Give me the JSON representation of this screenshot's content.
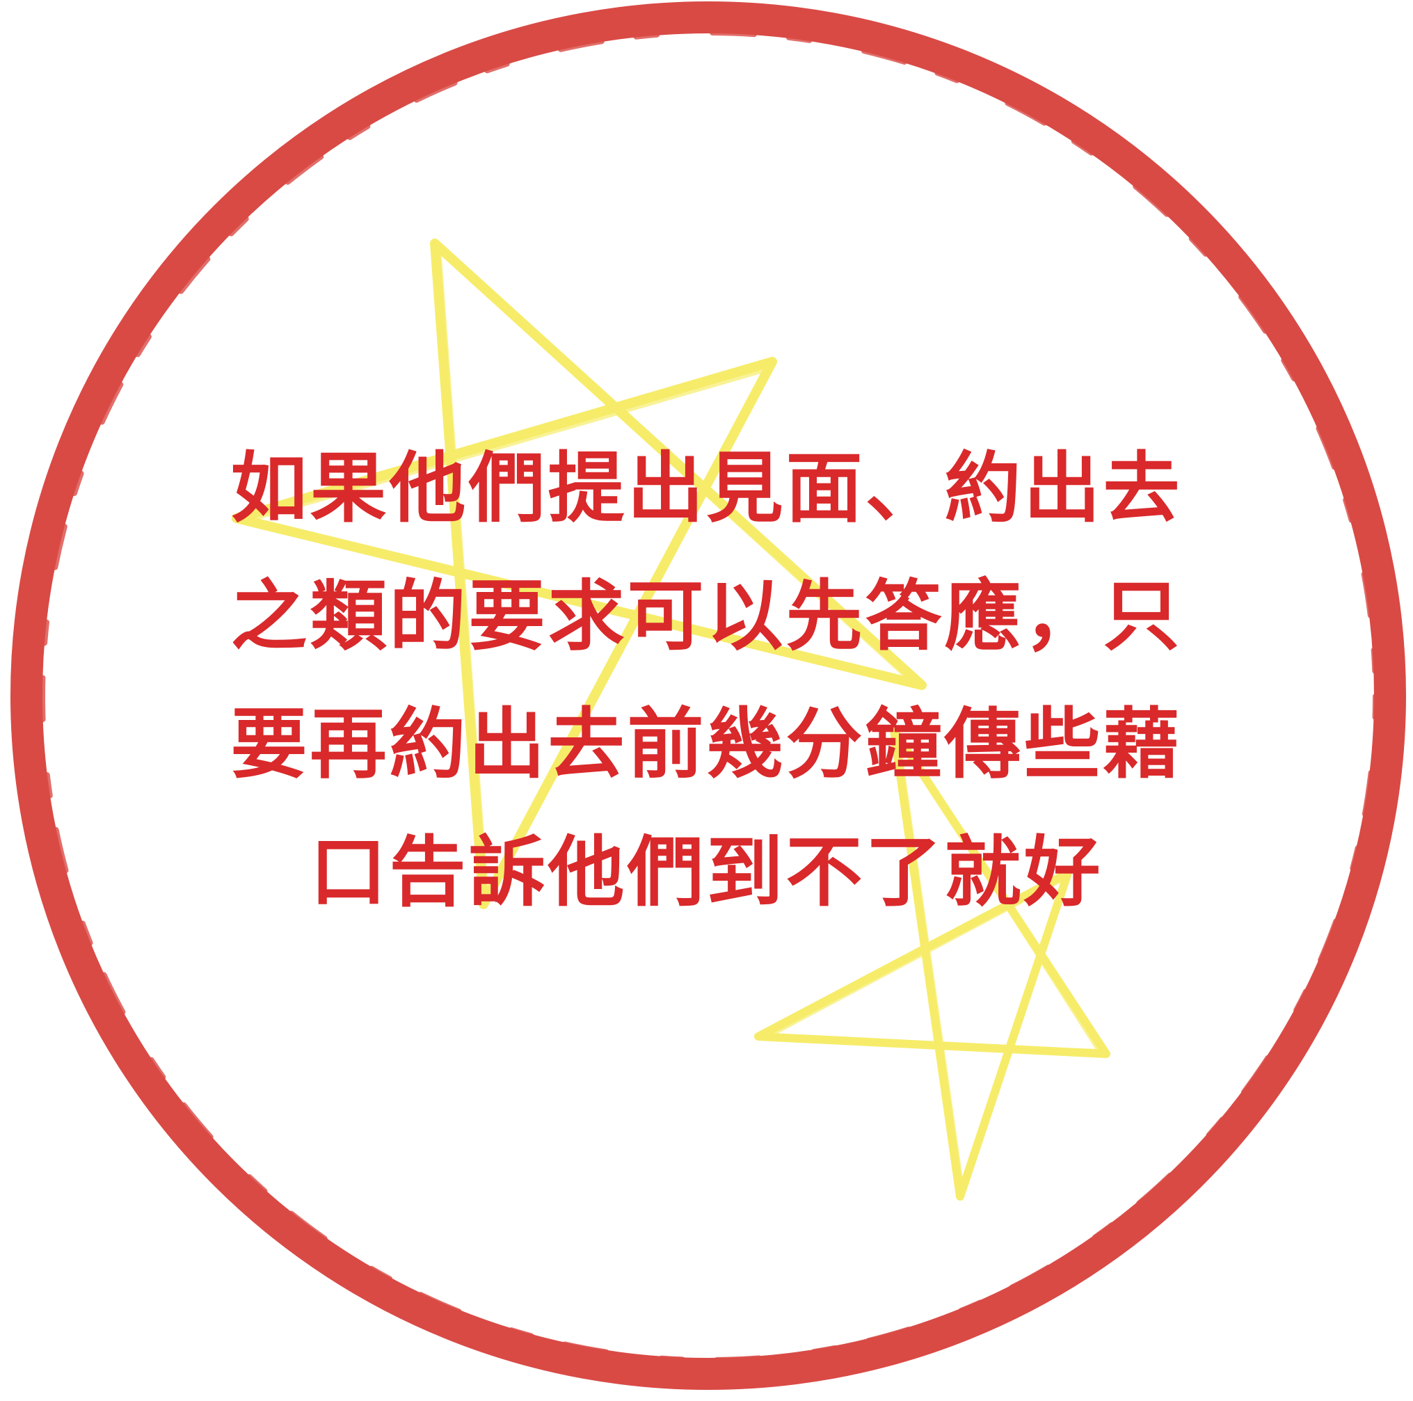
{
  "colors": {
    "ring": "#d94a45",
    "stars": "#f6ec6a",
    "text": "#d9292b",
    "background": "#ffffff"
  },
  "message": {
    "lines": [
      "如果他們提出見面、約出去",
      "之類的要求可以先答應，只",
      "要再約出去前幾分鐘傳些藉",
      "口告訴他們到不了就好"
    ]
  }
}
